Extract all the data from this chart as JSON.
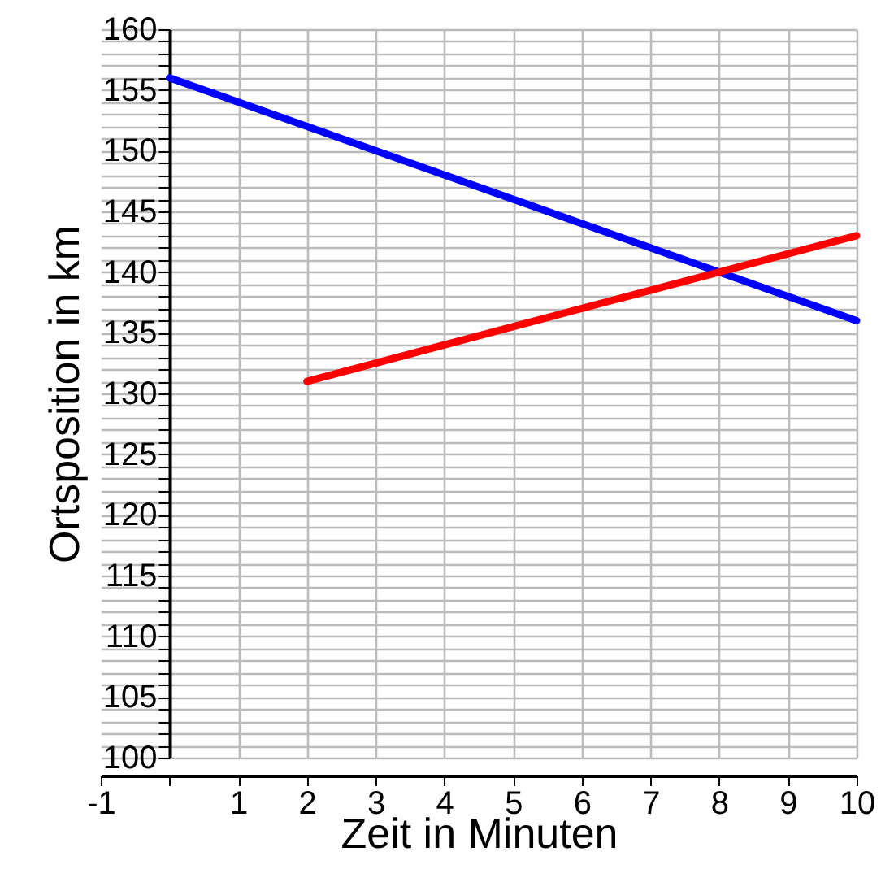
{
  "chart_data": {
    "type": "line",
    "xlabel": "Zeit in Minuten",
    "ylabel": "Ortsposition in km",
    "series": [
      {
        "color": "#0000ff",
        "x": [
          0,
          10
        ],
        "values": [
          156,
          136
        ]
      },
      {
        "color": "#ff0000",
        "x": [
          2,
          10
        ],
        "values": [
          131,
          143
        ]
      }
    ],
    "xlim": [
      -1,
      10
    ],
    "xticks": [
      -1,
      {
        "value": 0,
        "label": null
      },
      1,
      2,
      3,
      4,
      5,
      6,
      7,
      8,
      9,
      10
    ],
    "ylim": [
      100,
      160
    ],
    "yticks": [
      100,
      {
        "value": 101,
        "label": null
      },
      {
        "value": 102,
        "label": null
      },
      {
        "value": 103,
        "label": null
      },
      {
        "value": 104,
        "label": null
      },
      105,
      {
        "value": 106,
        "label": null
      },
      {
        "value": 107,
        "label": null
      },
      {
        "value": 108,
        "label": null
      },
      {
        "value": 109,
        "label": null
      },
      110,
      {
        "value": 111,
        "label": null
      },
      {
        "value": 112,
        "label": null
      },
      {
        "value": 113,
        "label": null
      },
      {
        "value": 114,
        "label": null
      },
      115,
      {
        "value": 116,
        "label": null
      },
      {
        "value": 117,
        "label": null
      },
      {
        "value": 118,
        "label": null
      },
      {
        "value": 119,
        "label": null
      },
      120,
      {
        "value": 121,
        "label": null
      },
      {
        "value": 122,
        "label": null
      },
      {
        "value": 123,
        "label": null
      },
      {
        "value": 124,
        "label": null
      },
      125,
      {
        "value": 126,
        "label": null
      },
      {
        "value": 127,
        "label": null
      },
      {
        "value": 128,
        "label": null
      },
      {
        "value": 129,
        "label": null
      },
      130,
      {
        "value": 131,
        "label": null
      },
      {
        "value": 132,
        "label": null
      },
      {
        "value": 133,
        "label": null
      },
      {
        "value": 134,
        "label": null
      },
      135,
      {
        "value": 136,
        "label": null
      },
      {
        "value": 137,
        "label": null
      },
      {
        "value": 138,
        "label": null
      },
      {
        "value": 139,
        "label": null
      },
      140,
      {
        "value": 141,
        "label": null
      },
      {
        "value": 142,
        "label": null
      },
      {
        "value": 143,
        "label": null
      },
      {
        "value": 144,
        "label": null
      },
      145,
      {
        "value": 146,
        "label": null
      },
      {
        "value": 147,
        "label": null
      },
      {
        "value": 148,
        "label": null
      },
      {
        "value": 149,
        "label": null
      },
      150,
      {
        "value": 151,
        "label": null
      },
      {
        "value": 152,
        "label": null
      },
      {
        "value": 153,
        "label": null
      },
      {
        "value": 154,
        "label": null
      },
      155,
      {
        "value": 156,
        "label": null
      },
      {
        "value": 157,
        "label": null
      },
      {
        "value": 158,
        "label": null
      },
      {
        "value": 159,
        "label": null
      },
      160
    ],
    "grid": true,
    "marker": "none",
    "line_style": "solid"
  }
}
